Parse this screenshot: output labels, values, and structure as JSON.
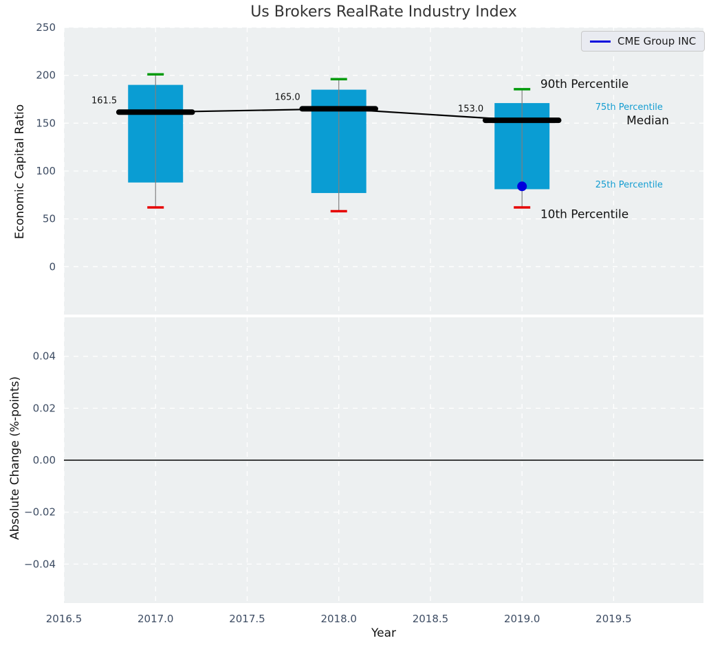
{
  "title": "Us Brokers RealRate Industry Index",
  "legend": {
    "label": "CME Group INC"
  },
  "colors": {
    "box_fill": "#0a9dd3",
    "p90_cap": "#009a0a",
    "p10_cap": "#e60000",
    "company_marker": "#0000dd",
    "accent_text": "#149dd1",
    "panel_bg": "#edf0f1",
    "grid": "#ffffff",
    "tick_text": "#3d4c63",
    "median_line": "#000000",
    "whisker": "#7f7f7f",
    "zero_line": "#000000",
    "label_text": "#111111"
  },
  "chart_data": [
    {
      "type": "boxplot",
      "title": "Us Brokers RealRate Industry Index",
      "xlabel": "Year",
      "ylabel": "Economic Capital Ratio",
      "xlim": [
        2016.5,
        2019.99
      ],
      "ylim": [
        -50,
        250
      ],
      "grid": "white-dashed",
      "legend_position": "upper right",
      "xticks": [
        "2016.5",
        "2017.0",
        "2017.5",
        "2018.0",
        "2018.5",
        "2019.0",
        "2019.5"
      ],
      "xtick_values": [
        2016.5,
        2017.0,
        2017.5,
        2018.0,
        2018.5,
        2019.0,
        2019.5
      ],
      "yticks": [
        "0",
        "50",
        "100",
        "150",
        "200",
        "250"
      ],
      "ytick_values": [
        0,
        50,
        100,
        150,
        200,
        250
      ],
      "years": [
        2017,
        2018,
        2019
      ],
      "series": {
        "p10": [
          62,
          58,
          62
        ],
        "p25": [
          88,
          77,
          81
        ],
        "median": [
          161.5,
          165.0,
          153.0
        ],
        "p75": [
          190,
          185,
          171
        ],
        "p90": [
          201,
          196,
          185.5
        ]
      },
      "median_labels": [
        "161.5",
        "165.0",
        "153.0"
      ],
      "company": {
        "name": "CME Group INC",
        "points": [
          {
            "x": 2019,
            "y": 84
          }
        ]
      },
      "annotations": [
        {
          "text": "90th Percentile",
          "x": 2019.1,
          "y": 191,
          "style": "lg"
        },
        {
          "text": "75th Percentile",
          "x": 2019.4,
          "y": 167,
          "style": "sm"
        },
        {
          "text": "Median",
          "x": 2019.57,
          "y": 153,
          "style": "lg"
        },
        {
          "text": "25th Percentile",
          "x": 2019.4,
          "y": 86,
          "style": "sm"
        },
        {
          "text": "10th Percentile",
          "x": 2019.1,
          "y": 55,
          "style": "lg"
        }
      ]
    },
    {
      "type": "line",
      "xlabel": "Year",
      "ylabel": "Absolute Change (%-points)",
      "xlim": [
        2016.5,
        2019.99
      ],
      "ylim": [
        -0.055,
        0.055
      ],
      "grid": "white-dashed",
      "yticks": [
        "0.04",
        "0.02",
        "0.00",
        "−0.02",
        "−0.04"
      ],
      "ytick_values": [
        0.04,
        0.02,
        0.0,
        -0.02,
        -0.04
      ],
      "zero_line": 0.0,
      "series": []
    }
  ]
}
